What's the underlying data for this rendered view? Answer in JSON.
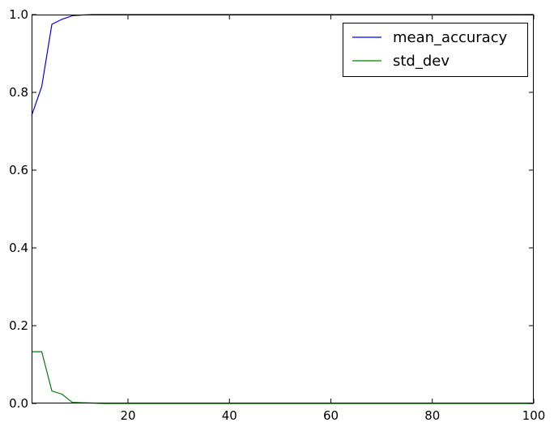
{
  "chart_data": {
    "type": "line",
    "title": "",
    "xlabel": "",
    "ylabel": "",
    "xlim": [
      1,
      100
    ],
    "ylim": [
      0.0,
      1.0
    ],
    "x_ticks": [
      20,
      40,
      60,
      80,
      100
    ],
    "y_ticks": [
      0.0,
      0.2,
      0.4,
      0.6,
      0.8,
      1.0
    ],
    "x_tick_labels": [
      "20",
      "40",
      "60",
      "80",
      "100"
    ],
    "y_tick_labels": [
      "0.0",
      "0.2",
      "0.4",
      "0.6",
      "0.8",
      "1.0"
    ],
    "grid": false,
    "legend_position": "top-right",
    "x": [
      1,
      3,
      5,
      7,
      9,
      11,
      13,
      15,
      17,
      19,
      25,
      30,
      40,
      50,
      60,
      70,
      80,
      90,
      100
    ],
    "series": [
      {
        "name": "mean_accuracy",
        "color": "#0000ff",
        "values": [
          0.74,
          0.815,
          0.975,
          0.988,
          0.997,
          0.999,
          1.0,
          1.0,
          1.0,
          1.0,
          1.0,
          1.0,
          1.0,
          1.0,
          1.0,
          1.0,
          1.0,
          1.0,
          1.0
        ]
      },
      {
        "name": "std_dev",
        "color": "#008000",
        "values": [
          0.133,
          0.133,
          0.032,
          0.024,
          0.003,
          0.002,
          0.001,
          0.0,
          0.0,
          0.0,
          0.0,
          0.0,
          0.0,
          0.0,
          0.0,
          0.0,
          0.0,
          0.0,
          0.0
        ]
      }
    ]
  }
}
